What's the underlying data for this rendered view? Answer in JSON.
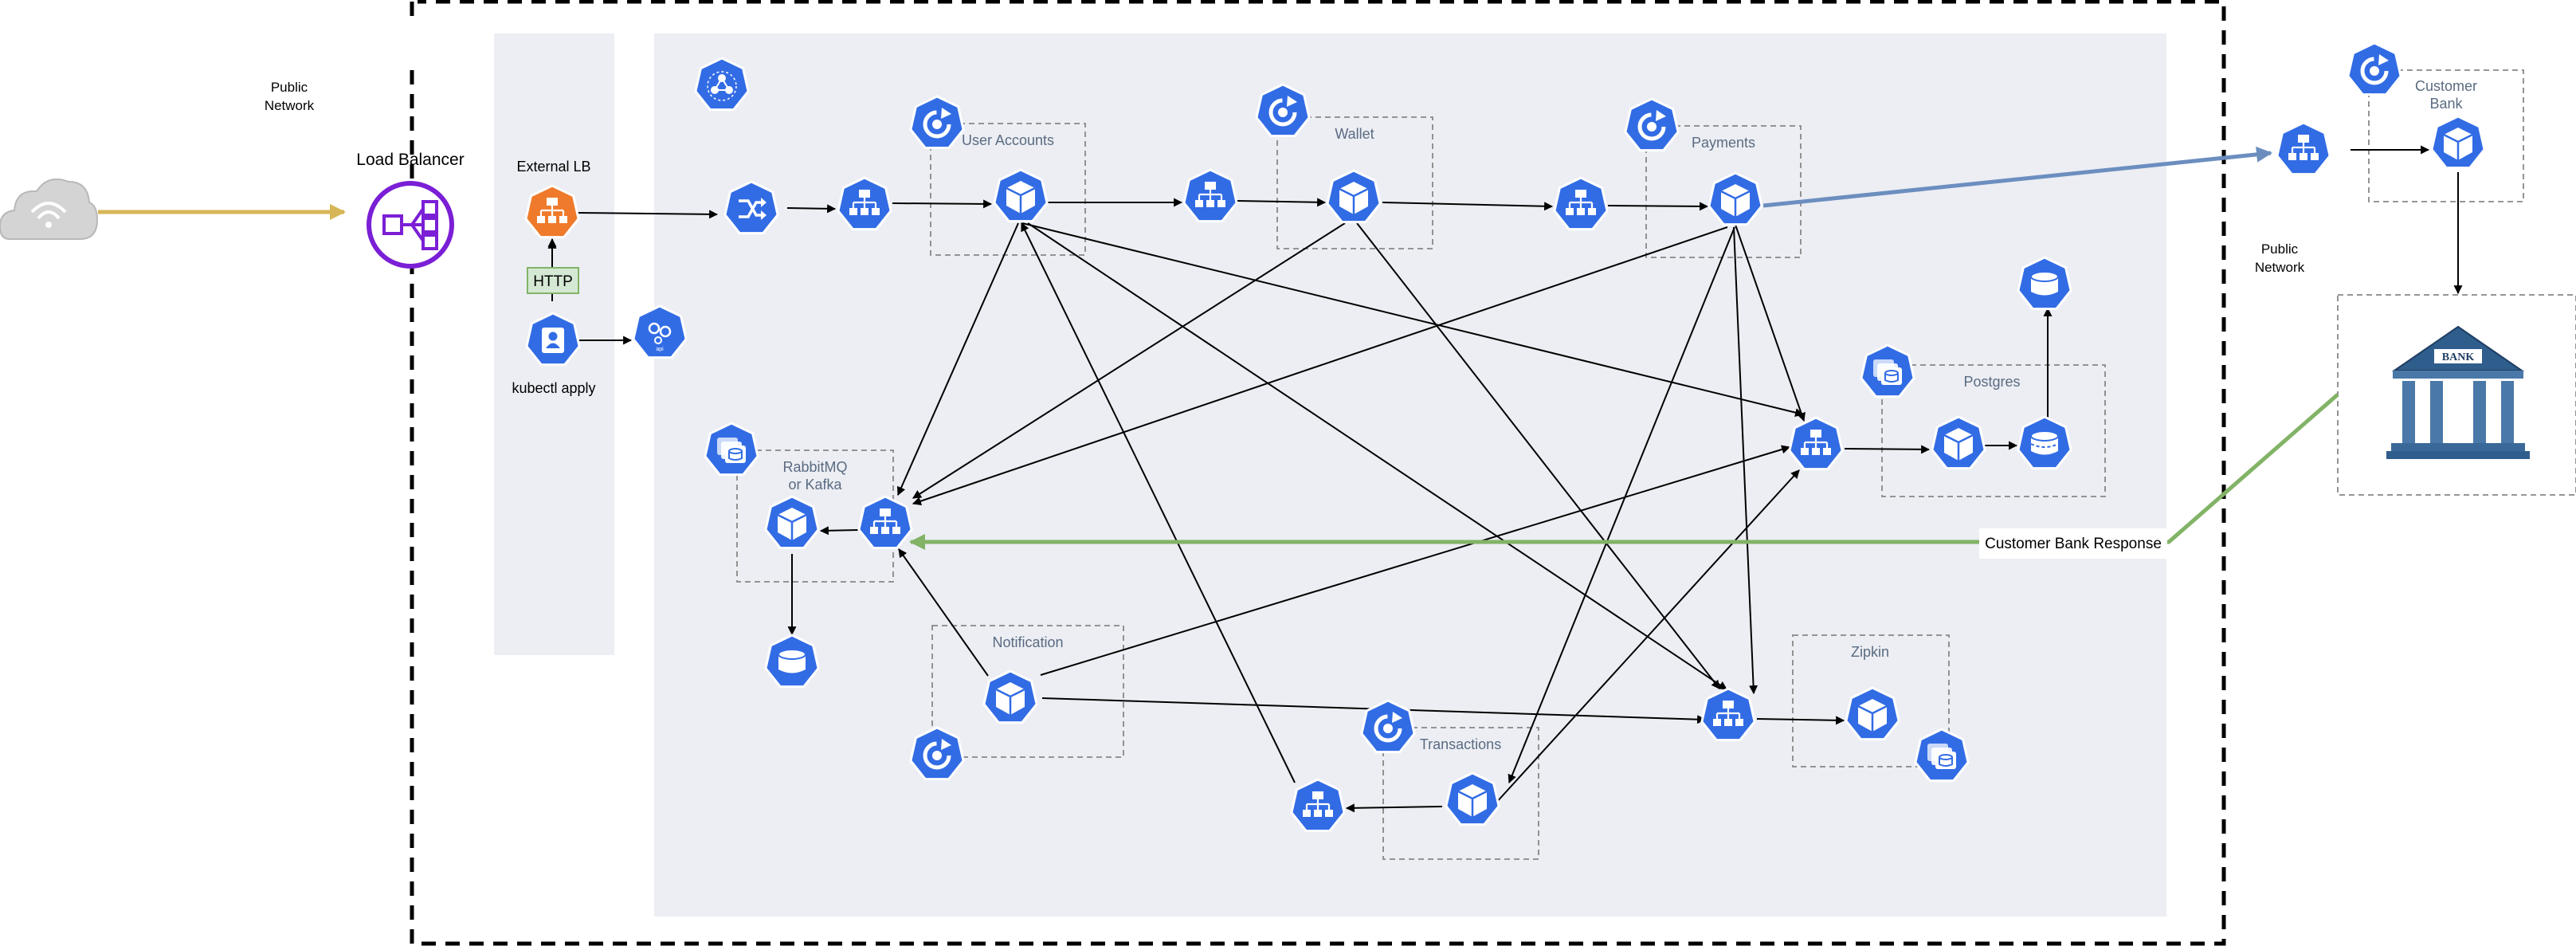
{
  "labels": {
    "public_network_left": [
      "Public",
      "Network"
    ],
    "public_network_right": [
      "Public",
      "Network"
    ],
    "load_balancer": "Load Balancer",
    "external_lb": "External LB",
    "http": "HTTP",
    "kubectl_apply": "kubectl apply",
    "user_accounts": "User Accounts",
    "wallet": "Wallet",
    "payments": "Payments",
    "customer_bank": [
      "Customer",
      "Bank"
    ],
    "postgres": "Postgres",
    "rabbitmq": [
      "RabbitMQ",
      "or Kafka"
    ],
    "notification": "Notification",
    "transactions": "Transactions",
    "zipkin": "Zipkin",
    "customer_bank_response": "Customer Bank Response",
    "bank_sign": "BANK"
  },
  "icons": {
    "cloud": "cloud-icon",
    "load_balancer": "elb-icon",
    "k8s_service": "k8s-service-icon",
    "k8s_pod": "k8s-pod-icon",
    "k8s_deployment": "k8s-deployment-icon",
    "k8s_statefulset": "k8s-statefulset-icon",
    "k8s_pv": "k8s-persistent-volume-icon",
    "k8s_ingress": "k8s-ingress-icon",
    "k8s_user": "k8s-user-icon",
    "bank": "bank-building-icon"
  },
  "colors": {
    "k8s_blue": "#326ce5",
    "lb_purple": "#7b1fd6",
    "ingress_orange": "#ef7a2b",
    "cloud_arrow": "#d6b656",
    "bank_arrow": "#6c8ebf",
    "response_arrow": "#82b366",
    "panel_gray": "#eceef3"
  }
}
